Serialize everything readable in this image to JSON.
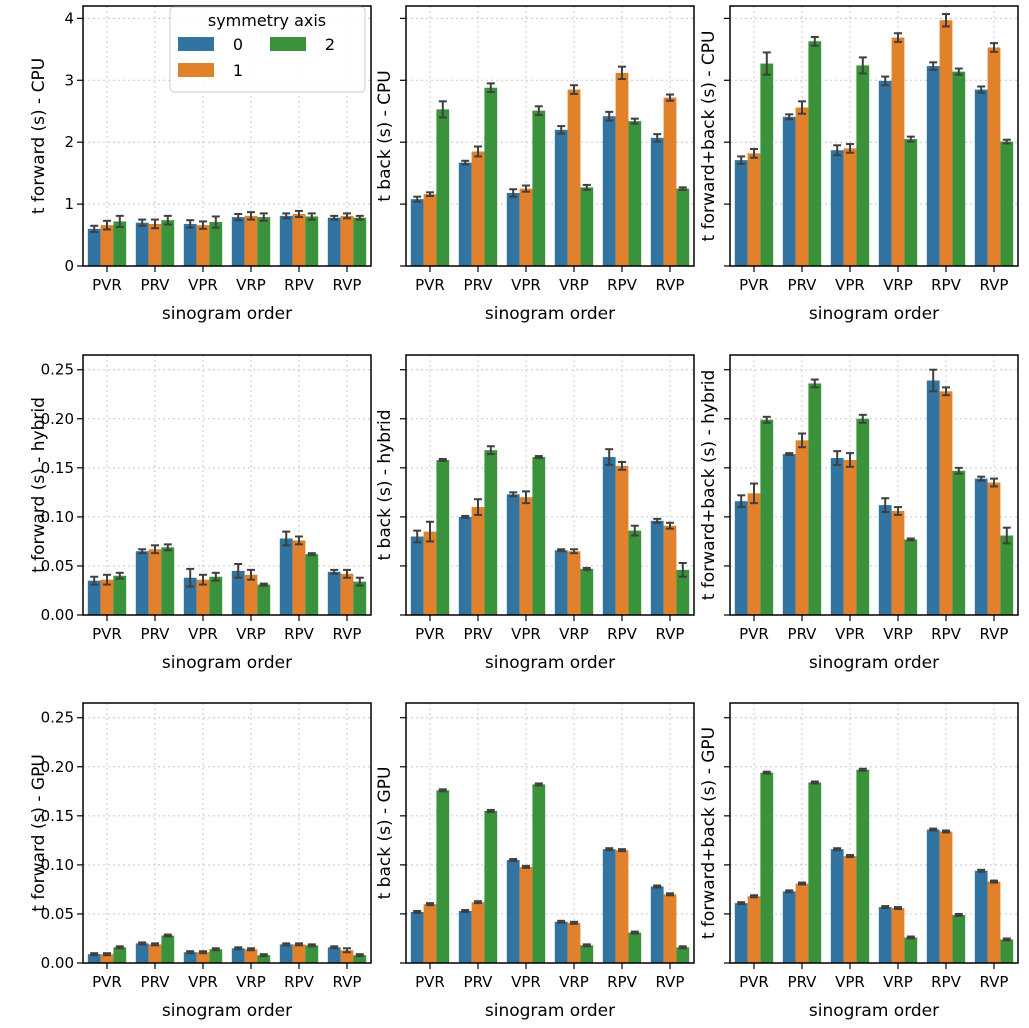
{
  "series_names": [
    "0",
    "1",
    "2"
  ],
  "colors": [
    "#3274a1",
    "#e1812c",
    "#3a923a"
  ],
  "legend": {
    "title": "symmetry axis",
    "labels": [
      "0",
      "1",
      "2"
    ]
  },
  "categories": [
    "PVR",
    "PRV",
    "VPR",
    "VRP",
    "RPV",
    "RVP"
  ],
  "chart_data": [
    {
      "type": "bar",
      "title": "",
      "xlabel": "sinogram order",
      "ylabel": "t forward (s) - CPU",
      "categories": [
        "PVR",
        "PRV",
        "VPR",
        "VRP",
        "RPV",
        "RVP"
      ],
      "ylim": [
        0,
        4.2
      ],
      "yticks": [
        0,
        1,
        2,
        3,
        4
      ],
      "ytick_labels": [
        "0",
        "1",
        "2",
        "3",
        "4"
      ],
      "series": [
        {
          "name": "0",
          "values": [
            0.6,
            0.7,
            0.68,
            0.79,
            0.81,
            0.78
          ],
          "errors": [
            0.05,
            0.05,
            0.06,
            0.05,
            0.04,
            0.03
          ]
        },
        {
          "name": "1",
          "values": [
            0.66,
            0.68,
            0.66,
            0.81,
            0.84,
            0.81
          ],
          "errors": [
            0.07,
            0.07,
            0.06,
            0.06,
            0.05,
            0.04
          ]
        },
        {
          "name": "2",
          "values": [
            0.72,
            0.74,
            0.71,
            0.79,
            0.8,
            0.78
          ],
          "errors": [
            0.09,
            0.07,
            0.09,
            0.06,
            0.05,
            0.03
          ]
        }
      ]
    },
    {
      "type": "bar",
      "title": "",
      "xlabel": "sinogram order",
      "ylabel": "t back (s) - CPU",
      "categories": [
        "PVR",
        "PRV",
        "VPR",
        "VRP",
        "RPV",
        "RVP"
      ],
      "ylim": [
        0,
        4.2
      ],
      "yticks": [
        0,
        1,
        2,
        3,
        4
      ],
      "ytick_labels": [],
      "series": [
        {
          "name": "0",
          "values": [
            1.08,
            1.67,
            1.18,
            2.2,
            2.42,
            2.07
          ],
          "errors": [
            0.04,
            0.03,
            0.06,
            0.06,
            0.07,
            0.06
          ]
        },
        {
          "name": "1",
          "values": [
            1.16,
            1.85,
            1.25,
            2.85,
            3.12,
            2.72
          ],
          "errors": [
            0.03,
            0.08,
            0.05,
            0.07,
            0.1,
            0.05
          ]
        },
        {
          "name": "2",
          "values": [
            2.53,
            2.88,
            2.51,
            1.27,
            2.34,
            1.25
          ],
          "errors": [
            0.13,
            0.07,
            0.07,
            0.04,
            0.04,
            0.02
          ]
        }
      ]
    },
    {
      "type": "bar",
      "title": "",
      "xlabel": "sinogram order",
      "ylabel": "t forward+back (s) - CPU",
      "categories": [
        "PVR",
        "PRV",
        "VPR",
        "VRP",
        "RPV",
        "RVP"
      ],
      "ylim": [
        0,
        4.2
      ],
      "yticks": [
        0,
        1,
        2,
        3,
        4
      ],
      "ytick_labels": [],
      "series": [
        {
          "name": "0",
          "values": [
            1.71,
            2.41,
            1.87,
            2.99,
            3.23,
            2.85
          ],
          "errors": [
            0.06,
            0.04,
            0.08,
            0.07,
            0.06,
            0.05
          ]
        },
        {
          "name": "1",
          "values": [
            1.82,
            2.56,
            1.9,
            3.69,
            3.97,
            3.53
          ],
          "errors": [
            0.07,
            0.1,
            0.07,
            0.07,
            0.1,
            0.07
          ]
        },
        {
          "name": "2",
          "values": [
            3.27,
            3.63,
            3.24,
            2.05,
            3.14,
            2.01
          ],
          "errors": [
            0.18,
            0.07,
            0.13,
            0.04,
            0.05,
            0.03
          ]
        }
      ]
    },
    {
      "type": "bar",
      "title": "",
      "xlabel": "sinogram order",
      "ylabel": "t forward (s) - hybrid",
      "categories": [
        "PVR",
        "PRV",
        "VPR",
        "VRP",
        "RPV",
        "RVP"
      ],
      "ylim": [
        0,
        0.265
      ],
      "yticks": [
        0,
        0.05,
        0.1,
        0.15,
        0.2,
        0.25
      ],
      "ytick_labels": [
        "0.00",
        "0.05",
        "0.10",
        "0.15",
        "0.20",
        "0.25"
      ],
      "series": [
        {
          "name": "0",
          "values": [
            0.035,
            0.065,
            0.038,
            0.045,
            0.078,
            0.044
          ],
          "errors": [
            0.004,
            0.002,
            0.009,
            0.007,
            0.007,
            0.002
          ]
        },
        {
          "name": "1",
          "values": [
            0.036,
            0.067,
            0.036,
            0.041,
            0.076,
            0.042
          ],
          "errors": [
            0.005,
            0.004,
            0.005,
            0.005,
            0.004,
            0.004
          ]
        },
        {
          "name": "2",
          "values": [
            0.04,
            0.069,
            0.039,
            0.031,
            0.062,
            0.034
          ],
          "errors": [
            0.003,
            0.003,
            0.004,
            0.001,
            0.001,
            0.004
          ]
        }
      ]
    },
    {
      "type": "bar",
      "title": "",
      "xlabel": "sinogram order",
      "ylabel": "t back (s) - hybrid",
      "categories": [
        "PVR",
        "PRV",
        "VPR",
        "VRP",
        "RPV",
        "RVP"
      ],
      "ylim": [
        0,
        0.265
      ],
      "yticks": [
        0,
        0.05,
        0.1,
        0.15,
        0.2,
        0.25
      ],
      "ytick_labels": [],
      "series": [
        {
          "name": "0",
          "values": [
            0.08,
            0.1,
            0.123,
            0.066,
            0.161,
            0.096
          ],
          "errors": [
            0.006,
            0.001,
            0.002,
            0.001,
            0.008,
            0.002
          ]
        },
        {
          "name": "1",
          "values": [
            0.085,
            0.11,
            0.12,
            0.065,
            0.152,
            0.091
          ],
          "errors": [
            0.01,
            0.008,
            0.006,
            0.002,
            0.004,
            0.003
          ]
        },
        {
          "name": "2",
          "values": [
            0.158,
            0.168,
            0.161,
            0.047,
            0.086,
            0.046
          ],
          "errors": [
            0.001,
            0.004,
            0.001,
            0.001,
            0.005,
            0.007
          ]
        }
      ]
    },
    {
      "type": "bar",
      "title": "",
      "xlabel": "sinogram order",
      "ylabel": "t forward+back (s) - hybrid",
      "categories": [
        "PVR",
        "PRV",
        "VPR",
        "VRP",
        "RPV",
        "RVP"
      ],
      "ylim": [
        0,
        0.265
      ],
      "yticks": [
        0,
        0.05,
        0.1,
        0.15,
        0.2,
        0.25
      ],
      "ytick_labels": [],
      "series": [
        {
          "name": "0",
          "values": [
            0.116,
            0.164,
            0.16,
            0.112,
            0.239,
            0.139
          ],
          "errors": [
            0.006,
            0.001,
            0.007,
            0.007,
            0.011,
            0.002
          ]
        },
        {
          "name": "1",
          "values": [
            0.124,
            0.178,
            0.158,
            0.106,
            0.228,
            0.135
          ],
          "errors": [
            0.01,
            0.007,
            0.007,
            0.004,
            0.004,
            0.004
          ]
        },
        {
          "name": "2",
          "values": [
            0.199,
            0.236,
            0.2,
            0.077,
            0.147,
            0.081
          ],
          "errors": [
            0.003,
            0.004,
            0.004,
            0.001,
            0.003,
            0.008
          ]
        }
      ]
    },
    {
      "type": "bar",
      "title": "",
      "xlabel": "sinogram order",
      "ylabel": "t forward (s) - GPU",
      "categories": [
        "PVR",
        "PRV",
        "VPR",
        "VRP",
        "RPV",
        "RVP"
      ],
      "ylim": [
        0,
        0.265
      ],
      "yticks": [
        0,
        0.05,
        0.1,
        0.15,
        0.2,
        0.25
      ],
      "ytick_labels": [
        "0.00",
        "0.05",
        "0.10",
        "0.15",
        "0.20",
        "0.25"
      ],
      "series": [
        {
          "name": "0",
          "values": [
            0.009,
            0.02,
            0.011,
            0.015,
            0.019,
            0.016
          ],
          "errors": [
            0.001,
            0.001,
            0.001,
            0.001,
            0.001,
            0.001
          ]
        },
        {
          "name": "1",
          "values": [
            0.009,
            0.019,
            0.011,
            0.014,
            0.019,
            0.013
          ],
          "errors": [
            0.001,
            0.001,
            0.001,
            0.001,
            0.001,
            0.002
          ]
        },
        {
          "name": "2",
          "values": [
            0.016,
            0.028,
            0.014,
            0.008,
            0.018,
            0.008
          ],
          "errors": [
            0.001,
            0.001,
            0.001,
            0.001,
            0.001,
            0.001
          ]
        }
      ]
    },
    {
      "type": "bar",
      "title": "",
      "xlabel": "sinogram order",
      "ylabel": "t back (s) - GPU",
      "categories": [
        "PVR",
        "PRV",
        "VPR",
        "VRP",
        "RPV",
        "RVP"
      ],
      "ylim": [
        0,
        0.265
      ],
      "yticks": [
        0,
        0.05,
        0.1,
        0.15,
        0.2,
        0.25
      ],
      "ytick_labels": [],
      "series": [
        {
          "name": "0",
          "values": [
            0.052,
            0.053,
            0.105,
            0.042,
            0.116,
            0.078
          ],
          "errors": [
            0.001,
            0.001,
            0.001,
            0.001,
            0.001,
            0.001
          ]
        },
        {
          "name": "1",
          "values": [
            0.06,
            0.062,
            0.098,
            0.041,
            0.115,
            0.07
          ],
          "errors": [
            0.001,
            0.001,
            0.001,
            0.001,
            0.001,
            0.001
          ]
        },
        {
          "name": "2",
          "values": [
            0.176,
            0.155,
            0.182,
            0.018,
            0.031,
            0.016
          ],
          "errors": [
            0.001,
            0.001,
            0.001,
            0.001,
            0.001,
            0.001
          ]
        }
      ]
    },
    {
      "type": "bar",
      "title": "",
      "xlabel": "sinogram order",
      "ylabel": "t forward+back (s) - GPU",
      "categories": [
        "PVR",
        "PRV",
        "VPR",
        "VRP",
        "RPV",
        "RVP"
      ],
      "ylim": [
        0,
        0.265
      ],
      "yticks": [
        0,
        0.05,
        0.1,
        0.15,
        0.2,
        0.25
      ],
      "ytick_labels": [],
      "series": [
        {
          "name": "0",
          "values": [
            0.061,
            0.073,
            0.116,
            0.057,
            0.136,
            0.094
          ],
          "errors": [
            0.001,
            0.001,
            0.001,
            0.001,
            0.001,
            0.001
          ]
        },
        {
          "name": "1",
          "values": [
            0.068,
            0.081,
            0.109,
            0.056,
            0.134,
            0.083
          ],
          "errors": [
            0.001,
            0.001,
            0.001,
            0.001,
            0.001,
            0.001
          ]
        },
        {
          "name": "2",
          "values": [
            0.194,
            0.184,
            0.197,
            0.026,
            0.049,
            0.024
          ],
          "errors": [
            0.001,
            0.001,
            0.001,
            0.001,
            0.001,
            0.001
          ]
        }
      ]
    }
  ]
}
